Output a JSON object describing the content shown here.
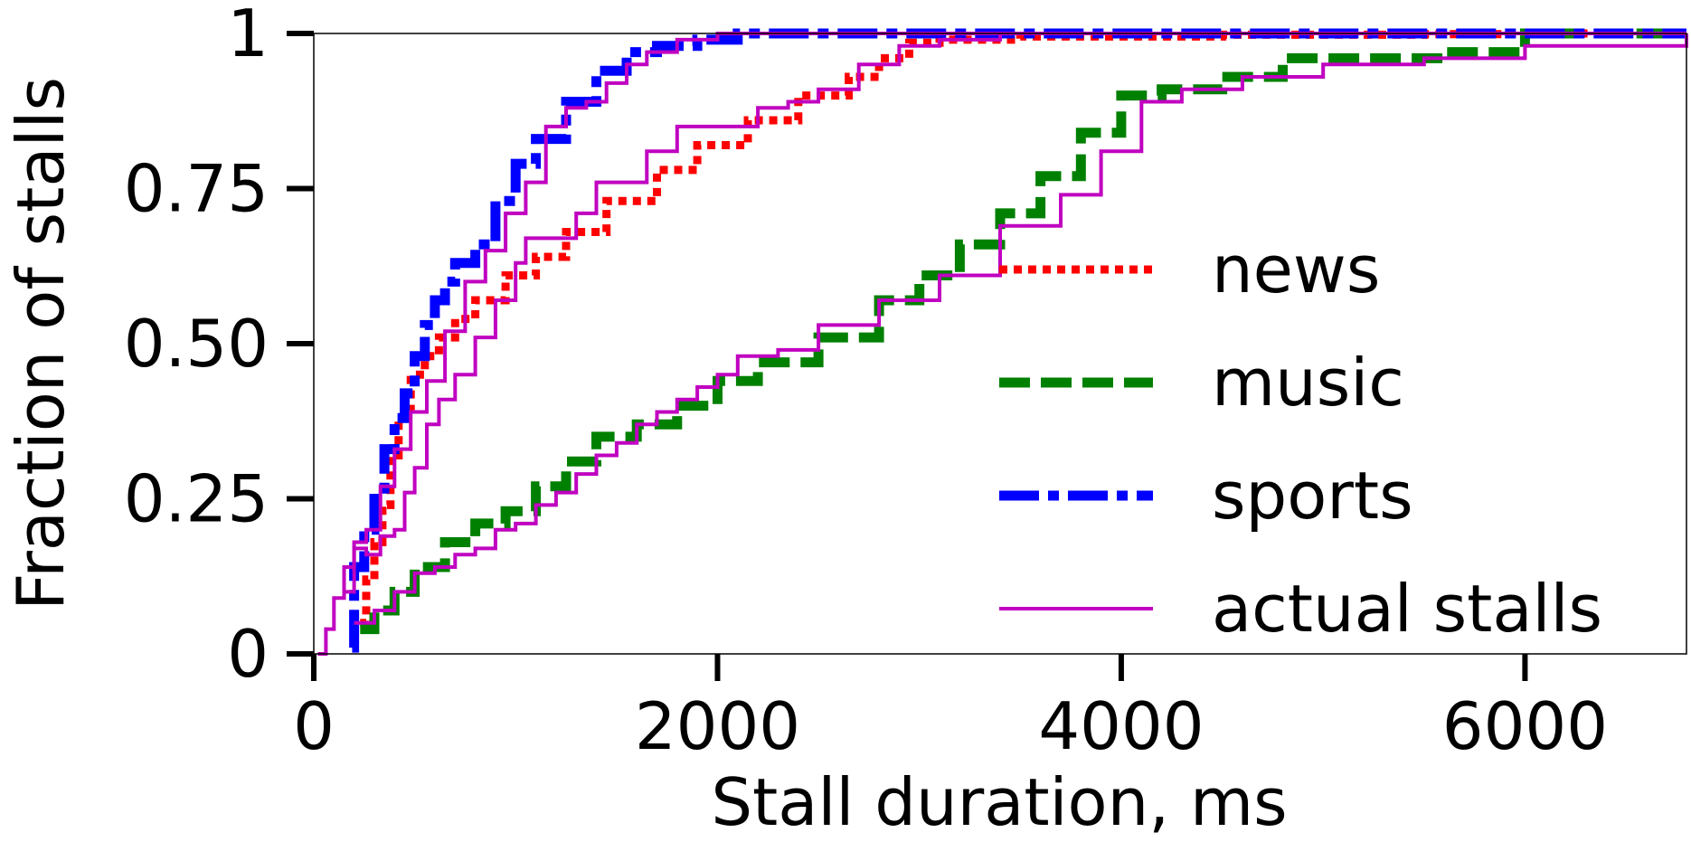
{
  "chart_data": {
    "type": "line",
    "xlabel": "Stall duration, ms",
    "ylabel": "Fraction of stalls",
    "xlim": [
      0,
      6800
    ],
    "ylim": [
      0,
      1
    ],
    "xticks": [
      0,
      2000,
      4000,
      6000
    ],
    "xtick_labels": [
      "0",
      "2000",
      "4000",
      "6000"
    ],
    "yticks": [
      0,
      0.25,
      0.5,
      0.75,
      1
    ],
    "ytick_labels": [
      "0",
      "0.25",
      "0.50",
      "0.75",
      "1"
    ],
    "legend_position": "center-right",
    "series": [
      {
        "name": "news",
        "color": "#ff0000",
        "style": "dotted",
        "x": [
          230,
          260,
          300,
          340,
          380,
          420,
          480,
          550,
          620,
          700,
          800,
          950,
          1100,
          1250,
          1450,
          1700,
          1900,
          2150,
          2400,
          2650,
          2800,
          2950,
          3100,
          3500,
          4500,
          5500,
          6000,
          6800
        ],
        "y": [
          0.05,
          0.12,
          0.18,
          0.24,
          0.32,
          0.38,
          0.45,
          0.48,
          0.51,
          0.54,
          0.57,
          0.61,
          0.64,
          0.68,
          0.73,
          0.78,
          0.82,
          0.86,
          0.9,
          0.93,
          0.96,
          0.985,
          0.99,
          0.995,
          0.998,
          0.999,
          1.0,
          1.0
        ]
      },
      {
        "name": "music",
        "color": "#008000",
        "style": "dashed",
        "x": [
          230,
          300,
          400,
          500,
          650,
          800,
          950,
          1100,
          1250,
          1400,
          1600,
          1800,
          2000,
          2200,
          2500,
          2800,
          3000,
          3200,
          3400,
          3600,
          3800,
          4000,
          4200,
          4500,
          4800,
          5200,
          5600,
          6000,
          6800
        ],
        "y": [
          0.04,
          0.07,
          0.1,
          0.14,
          0.18,
          0.21,
          0.23,
          0.27,
          0.31,
          0.35,
          0.37,
          0.4,
          0.44,
          0.47,
          0.51,
          0.57,
          0.61,
          0.66,
          0.71,
          0.77,
          0.84,
          0.9,
          0.91,
          0.93,
          0.96,
          0.96,
          0.97,
          1.0,
          1.0
        ]
      },
      {
        "name": "sports",
        "color": "#0000ff",
        "style": "dashdot",
        "x": [
          190,
          200,
          250,
          300,
          350,
          400,
          450,
          500,
          550,
          600,
          650,
          700,
          800,
          900,
          1000,
          1100,
          1250,
          1400,
          1550,
          1700,
          1900,
          2100,
          2500,
          3000,
          4000,
          6800
        ],
        "y": [
          0.01,
          0.14,
          0.2,
          0.25,
          0.33,
          0.38,
          0.42,
          0.48,
          0.53,
          0.57,
          0.6,
          0.63,
          0.66,
          0.73,
          0.79,
          0.83,
          0.89,
          0.94,
          0.97,
          0.98,
          0.99,
          1.0,
          1.0,
          1.0,
          1.0,
          1.0
        ]
      },
      {
        "name": "actual stalls",
        "color": "#c000c0",
        "style": "solid",
        "x": [
          20,
          60,
          100,
          150,
          200,
          260,
          330,
          400,
          450,
          500,
          560,
          620,
          700,
          800,
          900,
          1000,
          1050,
          1200,
          1300,
          1400,
          1500,
          1650,
          1800,
          2000,
          2200,
          2350,
          2500,
          2700,
          2900,
          3100,
          3400,
          3700,
          4000,
          4200,
          4500,
          5000,
          5500,
          6000,
          6800
        ],
        "y": [
          0.0,
          0.04,
          0.09,
          0.14,
          0.17,
          0.16,
          0.19,
          0.2,
          0.26,
          0.3,
          0.37,
          0.41,
          0.45,
          0.51,
          0.57,
          0.63,
          0.67,
          0.67,
          0.71,
          0.76,
          0.76,
          0.81,
          0.85,
          0.85,
          0.88,
          0.89,
          0.91,
          0.95,
          0.98,
          0.99,
          1.0,
          1.0,
          1.0,
          1.0,
          1.0,
          1.0,
          1.0,
          1.0,
          1.0
        ]
      },
      {
        "name": "",
        "color": "#c000c0",
        "style": "solid",
        "x": [
          200,
          300,
          400,
          500,
          600,
          700,
          800,
          900,
          1000,
          1100,
          1200,
          1300,
          1400,
          1500,
          1600,
          1700,
          1800,
          1900,
          2000,
          2100,
          2300,
          2500,
          2800,
          3100,
          3400,
          3700,
          3900,
          4100,
          4300,
          4600,
          5000,
          5500,
          6000,
          6800
        ],
        "y": [
          0.05,
          0.07,
          0.1,
          0.13,
          0.14,
          0.16,
          0.17,
          0.2,
          0.21,
          0.24,
          0.26,
          0.29,
          0.32,
          0.34,
          0.37,
          0.39,
          0.41,
          0.43,
          0.45,
          0.48,
          0.49,
          0.53,
          0.57,
          0.61,
          0.69,
          0.74,
          0.81,
          0.89,
          0.91,
          0.93,
          0.95,
          0.96,
          0.98,
          1.0
        ]
      },
      {
        "name": "",
        "color": "#c000c0",
        "style": "solid",
        "x": [
          150,
          200,
          260,
          330,
          400,
          480,
          560,
          650,
          750,
          850,
          950,
          1050,
          1150,
          1250,
          1350,
          1450,
          1550,
          1650,
          1800,
          2000,
          2300,
          2600,
          3000,
          4000,
          6800
        ],
        "y": [
          0.1,
          0.18,
          0.2,
          0.27,
          0.33,
          0.39,
          0.44,
          0.52,
          0.6,
          0.65,
          0.71,
          0.76,
          0.85,
          0.88,
          0.89,
          0.92,
          0.95,
          0.97,
          0.99,
          1.0,
          1.0,
          1.0,
          1.0,
          1.0,
          1.0
        ]
      }
    ]
  }
}
